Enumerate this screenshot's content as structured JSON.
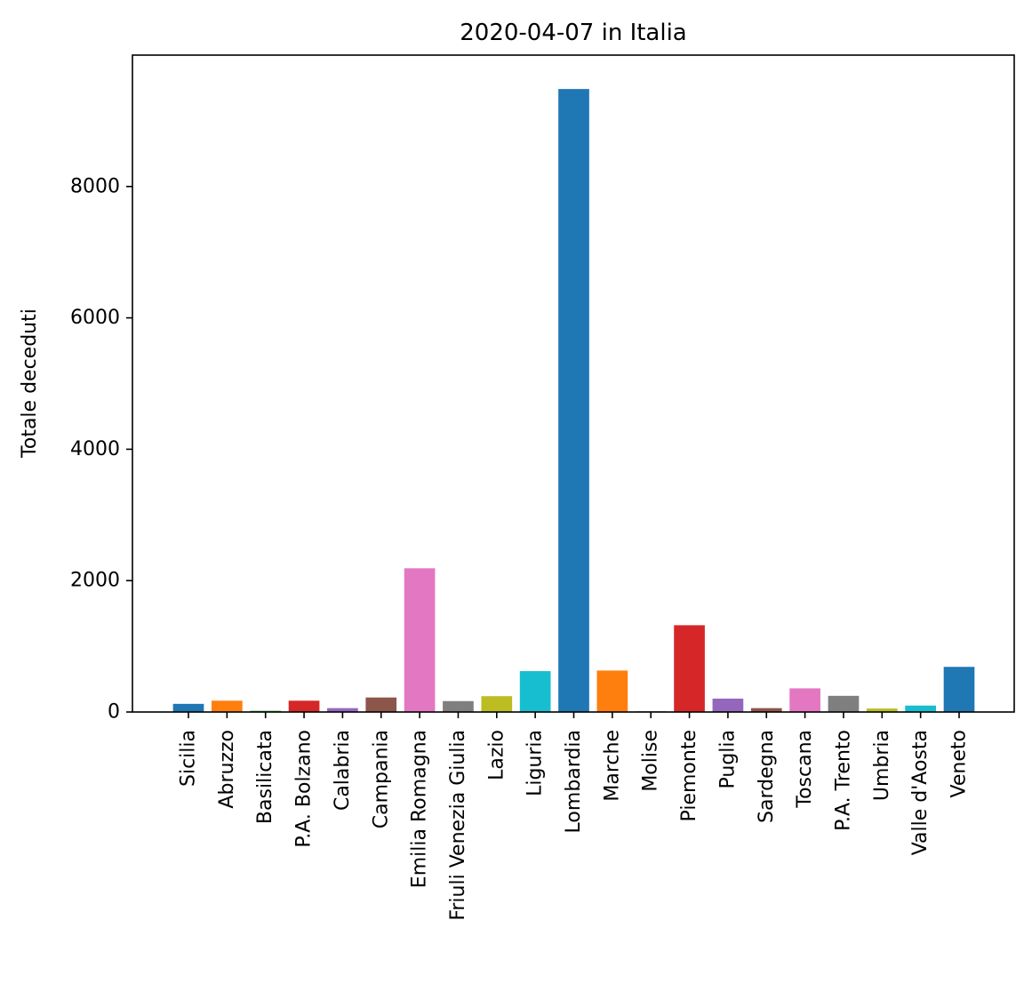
{
  "chart_data": {
    "type": "bar",
    "title": "2020-04-07 in Italia",
    "xlabel": "",
    "ylabel": "Totale deceduti",
    "ylim": [
      0,
      10000
    ],
    "yticks": [
      0,
      2000,
      4000,
      6000,
      8000
    ],
    "ytick_labels": [
      "0",
      "2000",
      "4000",
      "6000",
      "8000"
    ],
    "grid": false,
    "categories": [
      "Sicilia",
      "Abruzzo",
      "Basilicata",
      "P.A. Bolzano",
      "Calabria",
      "Campania",
      "Emilia Romagna",
      "Friuli Venezia Giulia",
      "Lazio",
      "Liguria",
      "Lombardia",
      "Marche",
      "Molise",
      "Piemonte",
      "Puglia",
      "Sardegna",
      "Toscana",
      "P.A. Trento",
      "Umbria",
      "Valle d'Aosta",
      "Veneto"
    ],
    "values": [
      124,
      172,
      18,
      172,
      59,
      221,
      2188,
      166,
      241,
      622,
      9484,
      631,
      10,
      1321,
      204,
      59,
      360,
      246,
      53,
      98,
      687
    ],
    "colors": [
      "#1f77b4",
      "#ff7f0e",
      "#2ca02c",
      "#d62728",
      "#9467bd",
      "#8c564b",
      "#e377c2",
      "#7f7f7f",
      "#bcbd22",
      "#17becf",
      "#1f77b4",
      "#ff7f0e",
      "#2ca02c",
      "#d62728",
      "#9467bd",
      "#8c564b",
      "#e377c2",
      "#7f7f7f",
      "#bcbd22",
      "#17becf",
      "#1f77b4"
    ]
  }
}
